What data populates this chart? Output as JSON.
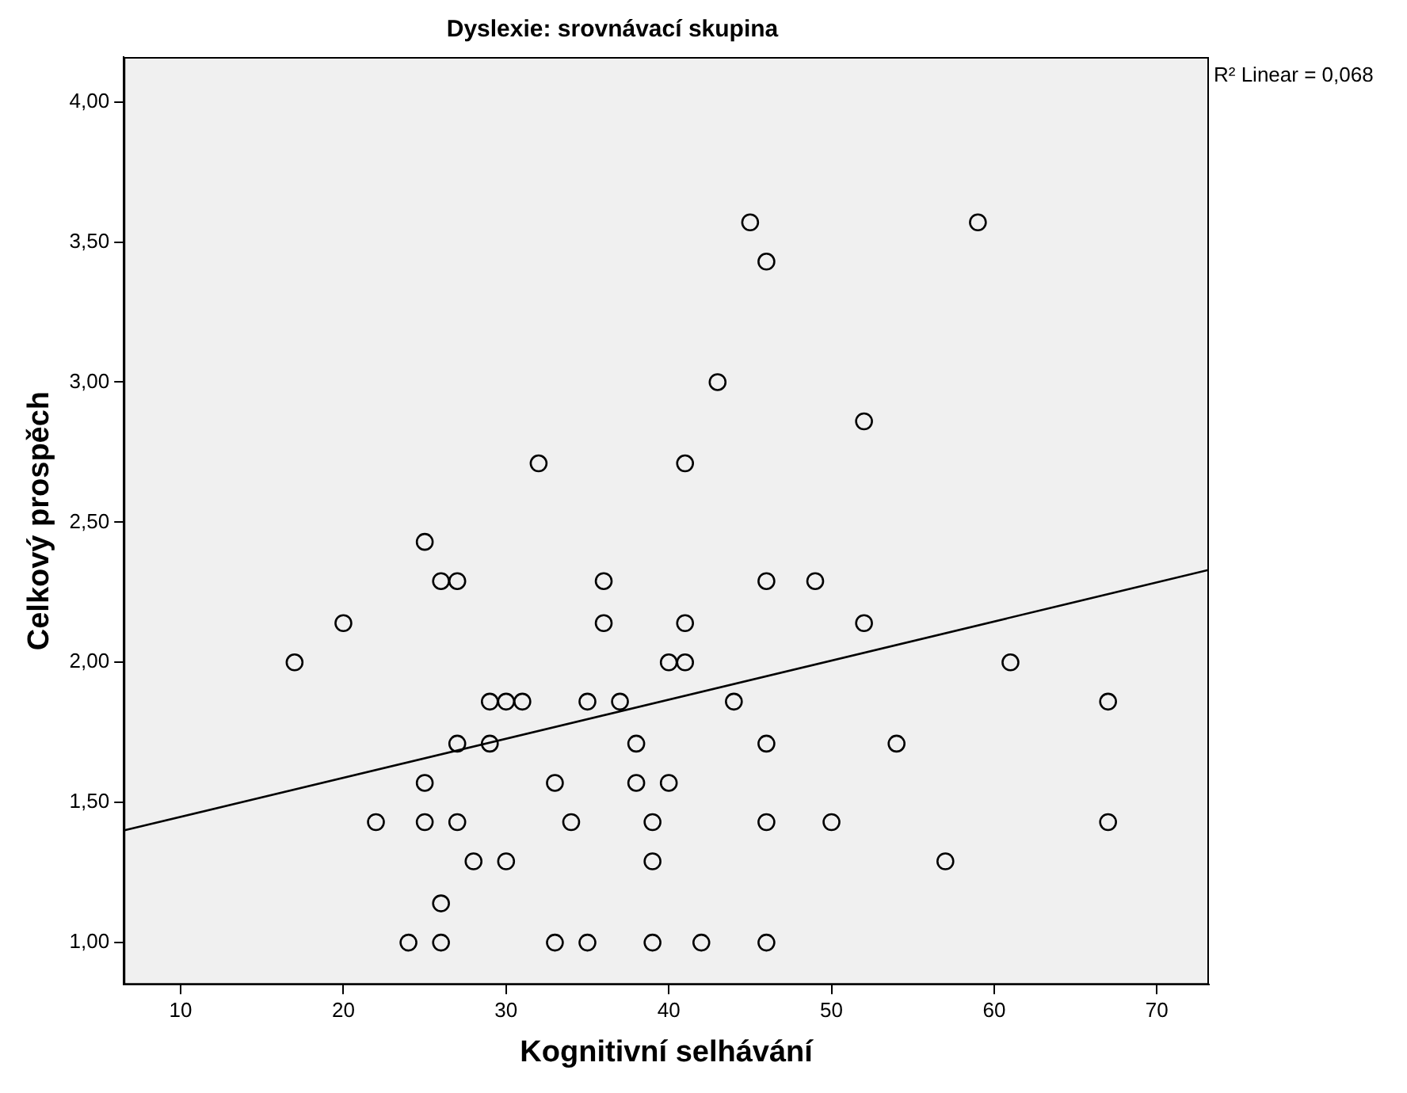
{
  "chart_data": {
    "type": "scatter",
    "title": "Dyslexie: srovnávací skupina",
    "xlabel": "Kognitivní selhávání",
    "ylabel": "Celkový prospěch",
    "annotations": [
      "R² Linear = 0,068"
    ],
    "xlim": [
      6.5,
      73.2
    ],
    "xticks": [
      10,
      20,
      30,
      40,
      50,
      60,
      70
    ],
    "ylim": [
      0.85,
      4.16
    ],
    "yticks": [
      {
        "value": 1,
        "label": "1,00"
      },
      {
        "value": 1.5,
        "label": "1,50"
      },
      {
        "value": 2,
        "label": "2,00"
      },
      {
        "value": 2.5,
        "label": "2,50"
      },
      {
        "value": 3,
        "label": "3,00"
      },
      {
        "value": 3.5,
        "label": "3,50"
      },
      {
        "value": 4,
        "label": "4,00"
      }
    ],
    "grid": false,
    "legend": false,
    "series": [
      {
        "type": "scatter",
        "marker": "circle",
        "color": "#000000",
        "x": [
          45,
          59,
          46,
          43,
          52,
          32,
          41,
          25,
          26,
          27,
          36,
          46,
          49,
          20,
          36,
          41,
          52,
          17,
          40,
          41,
          61,
          29,
          30,
          31,
          35,
          37,
          44,
          67,
          27,
          29,
          38,
          46,
          54,
          25,
          33,
          38,
          40,
          22,
          25,
          27,
          34,
          39,
          46,
          50,
          67,
          28,
          30,
          39,
          57,
          26,
          24,
          26,
          33,
          35,
          39,
          42,
          46
        ],
        "values": [
          3.57,
          3.57,
          3.43,
          3.0,
          2.86,
          2.71,
          2.71,
          2.43,
          2.29,
          2.29,
          2.29,
          2.29,
          2.29,
          2.14,
          2.14,
          2.14,
          2.14,
          2.0,
          2.0,
          2.0,
          2.0,
          1.86,
          1.86,
          1.86,
          1.86,
          1.86,
          1.86,
          1.86,
          1.71,
          1.71,
          1.71,
          1.71,
          1.71,
          1.57,
          1.57,
          1.57,
          1.57,
          1.43,
          1.43,
          1.43,
          1.43,
          1.43,
          1.43,
          1.43,
          1.43,
          1.29,
          1.29,
          1.29,
          1.29,
          1.14,
          1.0,
          1.0,
          1.0,
          1.0,
          1.0,
          1.0,
          1.0
        ]
      },
      {
        "type": "line",
        "marker": "none",
        "color": "#000000",
        "x": [
          6.5,
          73.2
        ],
        "values": [
          1.4,
          2.33
        ]
      }
    ]
  }
}
